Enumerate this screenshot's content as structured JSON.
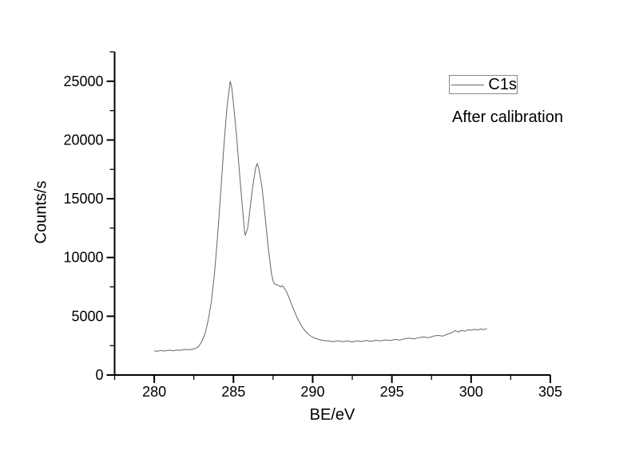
{
  "chart_data": {
    "type": "line",
    "title": "",
    "xlabel": "BE/eV",
    "ylabel": "Counts/s",
    "xlim": [
      277.5,
      305
    ],
    "ylim": [
      0,
      27500
    ],
    "x_major_ticks": [
      280,
      285,
      290,
      295,
      300,
      305
    ],
    "x_minor_ticks": [
      277.5,
      282.5,
      287.5,
      292.5,
      297.5,
      302.5
    ],
    "y_major_ticks": [
      0,
      5000,
      10000,
      15000,
      20000,
      25000
    ],
    "y_minor_ticks": [
      2500,
      7500,
      12500,
      17500,
      22500,
      27500
    ],
    "grid": false,
    "legend": {
      "position": "top-right",
      "entries": [
        {
          "label": "C1s"
        }
      ]
    },
    "annotation": "After calibration",
    "colors": {
      "background": "#ffffff",
      "axis": "#000000",
      "text": "#000000",
      "curve": "#666666",
      "legend_border": "#888888"
    },
    "series": [
      {
        "name": "C1s",
        "points": [
          [
            280.0,
            2060
          ],
          [
            280.2,
            2020
          ],
          [
            280.4,
            2090
          ],
          [
            280.6,
            2040
          ],
          [
            280.8,
            2080
          ],
          [
            281.0,
            2110
          ],
          [
            281.2,
            2060
          ],
          [
            281.4,
            2130
          ],
          [
            281.6,
            2090
          ],
          [
            281.8,
            2150
          ],
          [
            282.0,
            2170
          ],
          [
            282.2,
            2140
          ],
          [
            282.4,
            2200
          ],
          [
            282.6,
            2260
          ],
          [
            282.8,
            2420
          ],
          [
            283.0,
            2850
          ],
          [
            283.2,
            3500
          ],
          [
            283.4,
            4600
          ],
          [
            283.6,
            6200
          ],
          [
            283.8,
            8600
          ],
          [
            284.0,
            11800
          ],
          [
            284.2,
            15600
          ],
          [
            284.4,
            19600
          ],
          [
            284.6,
            22900
          ],
          [
            284.8,
            25000
          ],
          [
            284.9,
            24400
          ],
          [
            285.0,
            23100
          ],
          [
            285.2,
            20300
          ],
          [
            285.4,
            16900
          ],
          [
            285.6,
            13700
          ],
          [
            285.7,
            12200
          ],
          [
            285.75,
            11880
          ],
          [
            285.9,
            12500
          ],
          [
            286.0,
            13600
          ],
          [
            286.2,
            15900
          ],
          [
            286.4,
            17600
          ],
          [
            286.5,
            18000
          ],
          [
            286.6,
            17600
          ],
          [
            286.8,
            16000
          ],
          [
            287.0,
            13500
          ],
          [
            287.2,
            10800
          ],
          [
            287.4,
            8600
          ],
          [
            287.5,
            8000
          ],
          [
            287.6,
            7750
          ],
          [
            287.8,
            7650
          ],
          [
            288.0,
            7500
          ],
          [
            288.1,
            7600
          ],
          [
            288.2,
            7400
          ],
          [
            288.35,
            7100
          ],
          [
            288.5,
            6600
          ],
          [
            288.7,
            5900
          ],
          [
            288.9,
            5250
          ],
          [
            289.1,
            4650
          ],
          [
            289.3,
            4150
          ],
          [
            289.5,
            3800
          ],
          [
            289.7,
            3500
          ],
          [
            289.9,
            3300
          ],
          [
            290.1,
            3150
          ],
          [
            290.4,
            3020
          ],
          [
            290.7,
            2940
          ],
          [
            291.0,
            2890
          ],
          [
            291.3,
            2840
          ],
          [
            291.6,
            2910
          ],
          [
            291.9,
            2830
          ],
          [
            292.2,
            2890
          ],
          [
            292.5,
            2820
          ],
          [
            292.8,
            2900
          ],
          [
            293.1,
            2850
          ],
          [
            293.4,
            2930
          ],
          [
            293.7,
            2870
          ],
          [
            294.0,
            2960
          ],
          [
            294.3,
            2900
          ],
          [
            294.6,
            2990
          ],
          [
            294.9,
            2930
          ],
          [
            295.2,
            3030
          ],
          [
            295.5,
            2970
          ],
          [
            295.8,
            3090
          ],
          [
            296.1,
            3140
          ],
          [
            296.4,
            3070
          ],
          [
            296.7,
            3180
          ],
          [
            297.0,
            3240
          ],
          [
            297.3,
            3170
          ],
          [
            297.6,
            3300
          ],
          [
            297.9,
            3370
          ],
          [
            298.2,
            3310
          ],
          [
            298.5,
            3470
          ],
          [
            298.8,
            3620
          ],
          [
            299.0,
            3780
          ],
          [
            299.2,
            3650
          ],
          [
            299.4,
            3800
          ],
          [
            299.6,
            3720
          ],
          [
            299.8,
            3850
          ],
          [
            300.0,
            3800
          ],
          [
            300.2,
            3900
          ],
          [
            300.4,
            3830
          ],
          [
            300.6,
            3920
          ],
          [
            300.8,
            3860
          ],
          [
            301.0,
            3960
          ]
        ]
      }
    ]
  }
}
